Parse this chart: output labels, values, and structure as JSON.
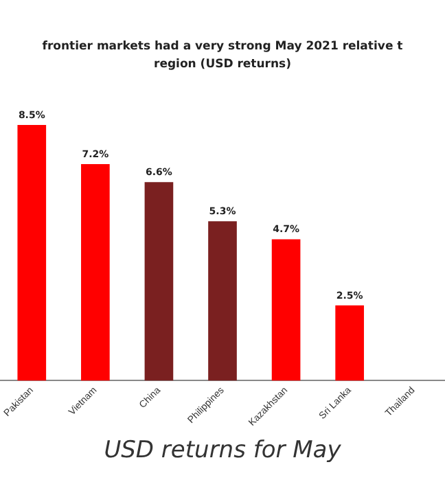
{
  "chart_data": {
    "type": "bar",
    "title": "frontier markets had a very strong May 2021 relative t",
    "subtitle": "region (USD returns)",
    "categories": [
      "Pakistan",
      "Vietnam",
      "China",
      "Philippines",
      "Kazakhstan",
      "Sri Lanka",
      "Thailand"
    ],
    "values": [
      8.5,
      7.2,
      6.6,
      5.3,
      4.7,
      2.5,
      null
    ],
    "colors": [
      "#ff0000",
      "#ff0000",
      "#7a2020",
      "#7a2020",
      "#ff0000",
      "#ff0000",
      "#ff0000"
    ],
    "value_labels": [
      "8.5%",
      "7.2%",
      "6.6%",
      "5.3%",
      "4.7%",
      "2.5%",
      null
    ],
    "annotations": [
      "USD returns for May"
    ],
    "grid": false,
    "legend": false
  }
}
